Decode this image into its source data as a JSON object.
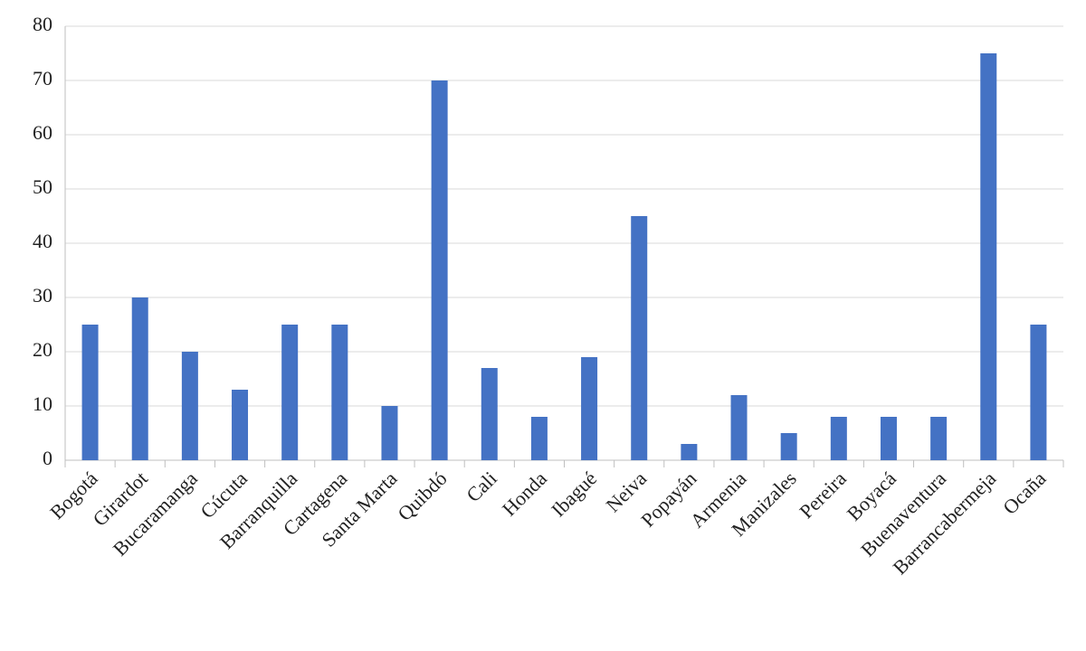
{
  "chart_data": {
    "type": "bar",
    "categories": [
      "Bogotá",
      "Girardot",
      "Bucaramanga",
      "Cúcuta",
      "Barranquilla",
      "Cartagena",
      "Santa Marta",
      "Quibdó",
      "Cali",
      "Honda",
      "Ibagué",
      "Neiva",
      "Popayán",
      "Armenia",
      "Manizales",
      "Pereira",
      "Boyacá",
      "Buenaventura",
      "Barrancabermeja",
      "Ocaña"
    ],
    "values": [
      25,
      30,
      20,
      13,
      25,
      25,
      10,
      70,
      17,
      8,
      19,
      45,
      3,
      12,
      5,
      8,
      8,
      8,
      75,
      25
    ],
    "color": "#4472c4",
    "ylim": [
      0,
      80
    ],
    "yticks": [
      0,
      10,
      20,
      30,
      40,
      50,
      60,
      70,
      80
    ],
    "grid": true
  }
}
